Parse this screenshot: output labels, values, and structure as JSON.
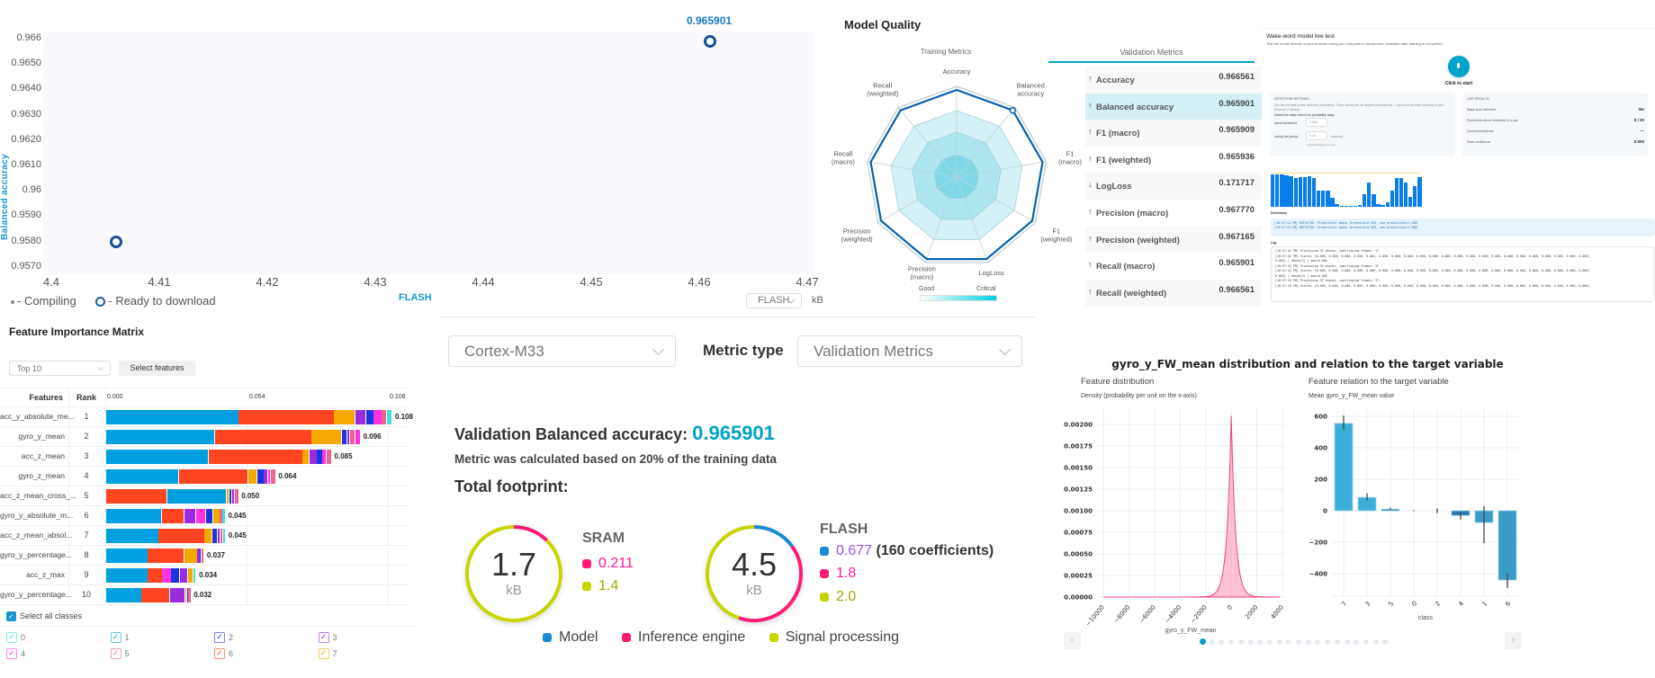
{
  "scatter": {
    "chart_data": {
      "type": "scatter",
      "xlabel": "FLASH",
      "ylabel": "Balanced accuracy",
      "x_ticks": [
        "4.4",
        "4.41",
        "4.42",
        "4.43",
        "4.44",
        "4.45",
        "4.46",
        "4.47"
      ],
      "y_ticks": [
        "0.966",
        "0.9650",
        "0.9640",
        "0.9630",
        "0.9620",
        "0.9610",
        "0.96",
        "0.9590",
        "0.9580",
        "0.9570"
      ],
      "xlim": [
        4.3953,
        4.4705
      ],
      "ylim": [
        0.95689,
        0.96628
      ],
      "points": [
        {
          "x": 4.406,
          "y": 0.958,
          "status": "ready"
        },
        {
          "x": 4.461,
          "y": 0.965901,
          "status": "ready",
          "label": "0.965901"
        }
      ]
    },
    "legend": {
      "compiling": "- Compiling",
      "ready": "- Ready to download"
    },
    "unit_select": "FLASH",
    "unit": "kB"
  },
  "model_quality": {
    "title": "Model Quality",
    "tabs": [
      "Training Metrics",
      "Validation Metrics"
    ],
    "active_tab": 1,
    "radar": {
      "type": "radar",
      "axes": [
        "Accuracy",
        "Balanced\naccuracy",
        "F1\n(macro)",
        "F1\n(weighted)",
        "LogLoss",
        "Precision\n(macro)",
        "Precision\n(weighted)",
        "Recall\n(macro)",
        "Recall\n(weighted)"
      ],
      "scores": [
        0.97,
        0.97,
        0.97,
        0.97,
        0.97,
        0.97,
        0.97,
        0.97,
        0.97
      ],
      "highlight_index": 1,
      "scale_low": "Good",
      "scale_high": "Critical"
    },
    "metrics": [
      {
        "dir": "up",
        "name": "Accuracy",
        "value": "0.966561"
      },
      {
        "dir": "up",
        "name": "Balanced accuracy",
        "value": "0.965901",
        "selected": true
      },
      {
        "dir": "up",
        "name": "F1 (macro)",
        "value": "0.965909"
      },
      {
        "dir": "up",
        "name": "F1 (weighted)",
        "value": "0.965936"
      },
      {
        "dir": "down",
        "name": "LogLoss",
        "value": "0.171717"
      },
      {
        "dir": "up",
        "name": "Precision (macro)",
        "value": "0.967770"
      },
      {
        "dir": "up",
        "name": "Precision (weighted)",
        "value": "0.967165"
      },
      {
        "dir": "up",
        "name": "Recall (macro)",
        "value": "0.965901"
      },
      {
        "dir": "up",
        "name": "Recall (weighted)",
        "value": "0.966561"
      }
    ]
  },
  "wake": {
    "title": "Wake-word model live test",
    "subtitle": "Test the model directly in your browser using your computer's microphone. Available after training is completed.",
    "start_label": "Click to start",
    "settings": {
      "heading": "DETECTION SETTINGS",
      "desc": "Use this live test to tune detection parameters. These values are not applied automatically — you must set them manually in your firmware (C library).",
      "prompt": "Detect the wake word if its probability stays",
      "threshold_label": "above threshold",
      "threshold_value": "0.995",
      "period_label": "during the period",
      "period_value": "0.29",
      "period_unit": "seconds",
      "hint": "≈ 15 predictions in a row"
    },
    "results": {
      "heading": "LIVE RESULTS",
      "rows": [
        {
          "label": "Wake word detected",
          "value": "No"
        },
        {
          "label": "Predictions above threshold in a row",
          "value": "0 / 20"
        },
        {
          "label": "Current confidence",
          "value": "—"
        },
        {
          "label": "Peak confidence",
          "value": "0.000"
        }
      ]
    },
    "bars": [
      0.98,
      0.98,
      0.98,
      0.95,
      0.92,
      0.86,
      0.9,
      0.9,
      0.92,
      0.86,
      0.5,
      0.5,
      0.5,
      0.28,
      0.09,
      0.03,
      0.02,
      0.02,
      0.02,
      0.05,
      0.38,
      0.72,
      0.38,
      0.09,
      0.06,
      0.14,
      0.5,
      0.86,
      0.86,
      0.72,
      0.3,
      0.62,
      0.9
    ],
    "detections_label": "Detections",
    "detections": [
      "[10:57:14 PM] DETECTED: Predictions above threshold=0.995, two predictions=1.000",
      "[10:57:24 PM] DETECTED: Predictions above threshold=0.995, two predictions=1.000"
    ],
    "log_label": "Log",
    "log": [
      "[10:57:42 PM] Processing 32 chunks, spectrogram frames: 37",
      "[10:57:42 PM] Scores: [0.000, 0.000, 0.000, 0.000, 0.001, 0.000, 0.000, 0.000, 0.000, 0.000, 0.000, 0.000, 0.000, 0.000, 0.000, 0.000, 0.000, 0.000, 0.000, 0.000, 0.000, 0.000]",
      "0.002] | above(2) | max=0.000",
      "[10:57:42 PM] Processing 32 chunks, spectrogram frames: 37",
      "[10:57:42 PM] Scores: [0.000, 0.000, 0.000, 0.000, 0.000, 0.000, 0.000, 0.000, 0.000, 0.000, 0.000, 0.000, 0.000, 0.000, 0.000, 0.000, 0.000, 0.000, 0.000, 0.000, 0.000, 0.000]",
      "0.003] | above(2) | max=0.000",
      "[10:57:43 PM] Processing 32 chunks, spectrogram frames: 37",
      "[10:57:43 PM] Scores: [0.000, 0.000, 0.000, 0.000, 0.000, 0.000, 0.000, 0.000, 0.000, 0.000, 0.000, 0.000, 0.000, 0.000, 0.000, 0.000, 0.000, 0.000, 0.000, 0.000, 0.000, 0.000]"
    ]
  },
  "fim": {
    "title": "Feature Importance Matrix",
    "top_select": "Top 10",
    "select_features": "Select features",
    "col_features": "Features",
    "col_rank": "Rank",
    "axis_ticks": [
      "0.000",
      "0.054",
      "0.108"
    ],
    "class_colors": [
      "#3ee0d8",
      "#00a0e0",
      "#1a35e0",
      "#9a2ce0",
      "#ff33dd",
      "#f0628e",
      "#ff4422",
      "#f5a800"
    ],
    "chart_data": {
      "type": "bar",
      "orientation": "horizontal-stacked",
      "xlim": [
        0,
        0.108
      ],
      "rows": [
        {
          "feature": "acc_y_absolute_me...",
          "rank": "1",
          "total": "0.108",
          "segments": [
            [
              1,
              0.05
            ],
            [
              6,
              0.036
            ],
            [
              7,
              0.008
            ],
            [
              3,
              0.004
            ],
            [
              2,
              0.003
            ],
            [
              4,
              0.003
            ],
            [
              5,
              0.002
            ],
            [
              0,
              0.002
            ]
          ]
        },
        {
          "feature": "gyro_y_mean",
          "rank": "2",
          "total": "0.096",
          "segments": [
            [
              1,
              0.041
            ],
            [
              6,
              0.0365
            ],
            [
              7,
              0.0115
            ],
            [
              2,
              0.002
            ],
            [
              3,
              0.001
            ],
            [
              5,
              0.002
            ],
            [
              4,
              0.002
            ]
          ]
        },
        {
          "feature": "acc_z_mean",
          "rank": "3",
          "total": "0.085",
          "segments": [
            [
              1,
              0.0387
            ],
            [
              6,
              0.0354
            ],
            [
              7,
              0.0025
            ],
            [
              3,
              0.003
            ],
            [
              2,
              0.002
            ],
            [
              4,
              0.0015
            ],
            [
              5,
              0.002
            ]
          ]
        },
        {
          "feature": "gyro_z_mean",
          "rank": "4",
          "total": "0.064",
          "segments": [
            [
              1,
              0.0275
            ],
            [
              6,
              0.026
            ],
            [
              7,
              0.0035
            ],
            [
              2,
              0.0025
            ],
            [
              3,
              0.0015
            ],
            [
              4,
              0.001
            ],
            [
              5,
              0.002
            ]
          ]
        },
        {
          "feature": "acc_z_mean_cross_...",
          "rank": "5",
          "total": "0.050",
          "segments": [
            [
              6,
              0.023
            ],
            [
              1,
              0.0225
            ],
            [
              7,
              0.001
            ],
            [
              2,
              0.001
            ],
            [
              3,
              0.001
            ],
            [
              5,
              0.0015
            ]
          ]
        },
        {
          "feature": "gyro_y_absolute_m...",
          "rank": "6",
          "total": "0.045",
          "segments": [
            [
              1,
              0.021
            ],
            [
              6,
              0.0085
            ],
            [
              3,
              0.0045
            ],
            [
              4,
              0.0037
            ],
            [
              2,
              0.0027
            ],
            [
              7,
              0.0025
            ],
            [
              5,
              0.001
            ],
            [
              0,
              0.0011
            ]
          ]
        },
        {
          "feature": "acc_z_mean_absol...",
          "rank": "7",
          "total": "0.045",
          "segments": [
            [
              1,
              0.0198
            ],
            [
              6,
              0.0173
            ],
            [
              7,
              0.003
            ],
            [
              2,
              0.002
            ],
            [
              3,
              0.001
            ],
            [
              5,
              0.001
            ],
            [
              0,
              0.001
            ]
          ]
        },
        {
          "feature": "gyro_y_percentage...",
          "rank": "8",
          "total": "0.037",
          "segments": [
            [
              1,
              0.0157
            ],
            [
              6,
              0.0137
            ],
            [
              7,
              0.005
            ],
            [
              3,
              0.001
            ],
            [
              2,
              0.0006
            ],
            [
              5,
              0.001
            ]
          ]
        },
        {
          "feature": "acc_z_max",
          "rank": "9",
          "total": "0.034",
          "segments": [
            [
              1,
              0.0157
            ],
            [
              6,
              0.0055
            ],
            [
              4,
              0.0033
            ],
            [
              2,
              0.0033
            ],
            [
              3,
              0.003
            ],
            [
              7,
              0.002
            ],
            [
              0,
              0.0012
            ]
          ]
        },
        {
          "feature": "gyro_y_percentage...",
          "rank": "10",
          "total": "0.032",
          "segments": [
            [
              1,
              0.0133
            ],
            [
              6,
              0.0107
            ],
            [
              3,
              0.0058
            ],
            [
              7,
              0.0007
            ],
            [
              2,
              0.0005
            ],
            [
              5,
              0.001
            ]
          ]
        }
      ]
    },
    "select_all": "Select all classes",
    "classes": [
      "0",
      "1",
      "2",
      "3",
      "4",
      "5",
      "6",
      "7"
    ]
  },
  "summary": {
    "device": "Cortex-M33",
    "metric_type_label": "Metric type",
    "metric_type": "Validation Metrics",
    "metric_label": "Validation Balanced accuracy:",
    "metric_value": "0.965901",
    "metric_note": "Metric was calculated based on 20% of the training data",
    "footprint_label": "Total footprint:",
    "sram": {
      "total": "1.7",
      "unit": "kB",
      "label": "SRAM",
      "inference": "0.211",
      "signal": "1.4"
    },
    "flash": {
      "total": "4.5",
      "unit": "kB",
      "label": "FLASH",
      "model": "0.677",
      "model_note": "(160 coefficients)",
      "inference": "1.8",
      "signal": "2.0"
    },
    "legend": [
      "Model",
      "Inference engine",
      "Signal processing"
    ],
    "colors": {
      "model": "#1a8ad6",
      "inference": "#ff1a75",
      "signal": "#c8d400",
      "accent": "#00a3c8"
    }
  },
  "feature_plot": {
    "title": "gyro_y_FW_mean distribution and relation to the target variable",
    "left": {
      "subtitle": "Feature distribution",
      "ylabel": "Density (probability per unit on the x-axis)",
      "xlabel": "gyro_y_FW_mean",
      "chart_data": {
        "type": "area",
        "x_ticks": [
          "−10000",
          "−8000",
          "−6000",
          "−4000",
          "−2000",
          "0",
          "2000",
          "4000"
        ],
        "y_ticks": [
          "0.00000",
          "0.00025",
          "0.00050",
          "0.00075",
          "0.00100",
          "0.00125",
          "0.00150",
          "0.00175",
          "0.00200"
        ],
        "xlim": [
          -10000,
          4000
        ],
        "ylim": [
          0,
          0.0021
        ],
        "peak": {
          "x": 0,
          "y": 0.0021
        },
        "scale": 330
      }
    },
    "right": {
      "subtitle": "Feature relation to the target variable",
      "ylabel": "Mean gyro_y_FW_mean value",
      "xlabel": "class",
      "chart_data": {
        "type": "bar",
        "categories": [
          "7",
          "3",
          "5",
          "0",
          "2",
          "4",
          "1",
          "6"
        ],
        "values": [
          555,
          85,
          10,
          0,
          0,
          -30,
          -75,
          -440
        ],
        "errors": [
          [
            515,
            605
          ],
          [
            65,
            110
          ],
          [
            5,
            20
          ],
          [
            -3,
            3
          ],
          [
            -15,
            15
          ],
          [
            -55,
            -10
          ],
          [
            -205,
            30
          ],
          [
            -490,
            -400
          ]
        ],
        "y_ticks": [
          "600",
          "400",
          "200",
          "0",
          "−200",
          "−400"
        ],
        "ylim": [
          -500,
          620
        ]
      }
    },
    "pager": {
      "pages": 20,
      "current": 0
    }
  }
}
